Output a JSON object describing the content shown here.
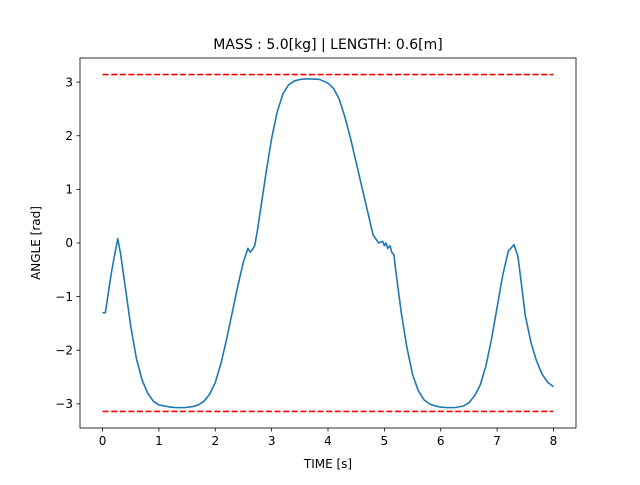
{
  "chart_data": {
    "type": "line",
    "title": "MASS : 5.0[kg] | LENGTH: 0.6[m]",
    "xlabel": "TIME [s]",
    "ylabel": "ANGLE [rad]",
    "xlim": [
      -0.4,
      8.4
    ],
    "ylim": [
      -3.45,
      3.45
    ],
    "xticks": [
      0,
      1,
      2,
      3,
      4,
      5,
      6,
      7,
      8
    ],
    "xtick_labels": [
      "0",
      "1",
      "2",
      "3",
      "4",
      "5",
      "6",
      "7",
      "8"
    ],
    "yticks": [
      -3,
      -2,
      -1,
      0,
      1,
      2,
      3
    ],
    "ytick_labels": [
      "−3",
      "−2",
      "−1",
      "0",
      "1",
      "2",
      "3"
    ],
    "grid": false,
    "series": [
      {
        "style": "solid",
        "color": "#1f77b4",
        "x": [
          0,
          0.05,
          0.1,
          0.15,
          0.2,
          0.27,
          0.32,
          0.4,
          0.5,
          0.6,
          0.7,
          0.8,
          0.9,
          1.0,
          1.1,
          1.2,
          1.3,
          1.45,
          1.6,
          1.7,
          1.8,
          1.9,
          2.0,
          2.1,
          2.2,
          2.3,
          2.4,
          2.5,
          2.58,
          2.62,
          2.66,
          2.7,
          2.75,
          2.8,
          2.9,
          3.0,
          3.1,
          3.2,
          3.3,
          3.4,
          3.5,
          3.6,
          3.7,
          3.85,
          4.0,
          4.1,
          4.2,
          4.3,
          4.4,
          4.5,
          4.6,
          4.7,
          4.8,
          4.9,
          4.97,
          5.0,
          5.03,
          5.06,
          5.1,
          5.13,
          5.17,
          5.2,
          5.3,
          5.4,
          5.5,
          5.6,
          5.7,
          5.8,
          5.9,
          6.0,
          6.1,
          6.25,
          6.4,
          6.5,
          6.6,
          6.7,
          6.8,
          6.9,
          7.0,
          7.1,
          7.2,
          7.3,
          7.37,
          7.43,
          7.5,
          7.6,
          7.7,
          7.8,
          7.9,
          8.0
        ],
        "values": [
          -1.3,
          -1.3,
          -0.95,
          -0.6,
          -0.3,
          0.08,
          -0.2,
          -0.8,
          -1.55,
          -2.15,
          -2.55,
          -2.8,
          -2.95,
          -3.02,
          -3.04,
          -3.06,
          -3.07,
          -3.07,
          -3.05,
          -3.02,
          -2.95,
          -2.82,
          -2.6,
          -2.25,
          -1.8,
          -1.3,
          -0.8,
          -0.35,
          -0.1,
          -0.17,
          -0.12,
          -0.05,
          0.25,
          0.6,
          1.3,
          1.95,
          2.45,
          2.78,
          2.95,
          3.02,
          3.05,
          3.06,
          3.06,
          3.05,
          2.98,
          2.88,
          2.68,
          2.35,
          1.95,
          1.5,
          1.05,
          0.6,
          0.15,
          0.0,
          0.03,
          -0.05,
          0.0,
          -0.1,
          -0.05,
          -0.17,
          -0.22,
          -0.5,
          -1.3,
          -1.95,
          -2.45,
          -2.75,
          -2.92,
          -3.0,
          -3.04,
          -3.06,
          -3.07,
          -3.07,
          -3.04,
          -2.98,
          -2.85,
          -2.65,
          -2.3,
          -1.8,
          -1.2,
          -0.6,
          -0.15,
          -0.03,
          -0.25,
          -0.75,
          -1.35,
          -1.85,
          -2.2,
          -2.45,
          -2.6,
          -2.68
        ]
      },
      {
        "style": "dashed",
        "color": "#ff0000",
        "x": [
          0,
          8
        ],
        "values": [
          3.14159,
          3.14159
        ]
      },
      {
        "style": "dashed",
        "color": "#ff0000",
        "x": [
          0,
          8
        ],
        "values": [
          -3.14159,
          -3.14159
        ]
      }
    ]
  }
}
